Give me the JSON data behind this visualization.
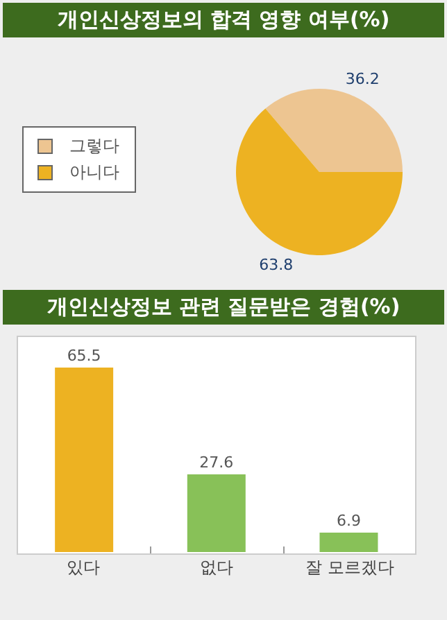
{
  "chart_data": [
    {
      "type": "pie",
      "title": "개인신상정보의 합격 영향 여부(%)",
      "categories": [
        "그렇다",
        "아니다"
      ],
      "values": [
        36.2,
        63.8
      ],
      "colors": [
        "#edc591",
        "#edb222"
      ],
      "data_labels": true,
      "legend": "left"
    },
    {
      "type": "bar",
      "title": "개인신상정보 관련 질문받은 경험(%)",
      "categories": [
        "있다",
        "없다",
        "잘 모르겠다"
      ],
      "values": [
        65.5,
        27.6,
        6.9
      ],
      "colors": [
        "#edb222",
        "#88c158",
        "#88c158"
      ],
      "data_labels": true
    }
  ]
}
